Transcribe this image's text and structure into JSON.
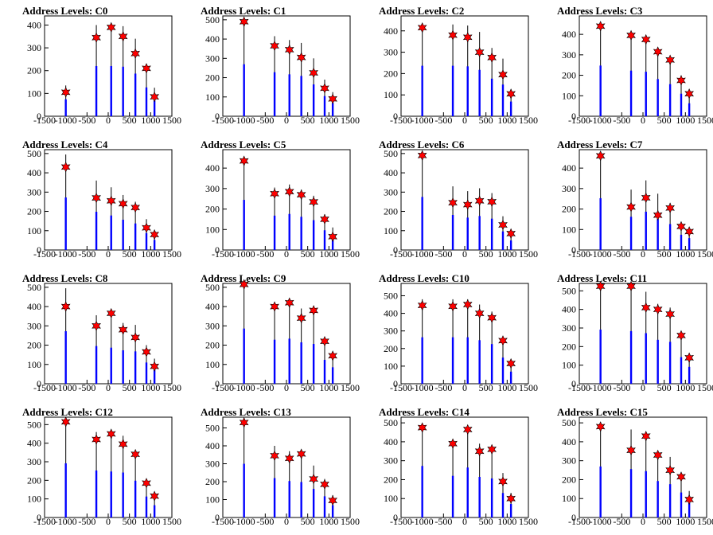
{
  "chart_data": [
    {
      "type": "bar",
      "title": "Address Levels: C0",
      "xlim": [
        -1500,
        1500
      ],
      "ylim": [
        0,
        440
      ],
      "yticks": [
        0,
        100,
        200,
        300,
        400
      ],
      "xticks": [
        -1500,
        -1000,
        -500,
        0,
        500,
        1000,
        1500
      ],
      "x": [
        -1000,
        -280,
        70,
        350,
        640,
        900,
        1090
      ],
      "values": [
        135,
        400,
        400,
        395,
        340,
        230,
        125
      ],
      "marker_values": [
        105,
        345,
        390,
        350,
        275,
        210,
        85
      ]
    },
    {
      "type": "bar",
      "title": "Address Levels: C1",
      "xlim": [
        -1500,
        1500
      ],
      "ylim": [
        0,
        520
      ],
      "yticks": [
        0,
        100,
        200,
        300,
        400,
        500
      ],
      "xticks": [
        -1500,
        -1000,
        -500,
        0,
        500,
        1000,
        1500
      ],
      "x": [
        -1000,
        -280,
        70,
        350,
        640,
        900,
        1090
      ],
      "values": [
        490,
        415,
        395,
        380,
        300,
        190,
        125
      ],
      "marker_values": [
        490,
        365,
        345,
        305,
        225,
        145,
        90
      ]
    },
    {
      "type": "bar",
      "title": "Address Levels: C2",
      "xlim": [
        -1500,
        1500
      ],
      "ylim": [
        0,
        470
      ],
      "yticks": [
        0,
        100,
        200,
        300,
        400
      ],
      "xticks": [
        -1500,
        -1000,
        -500,
        0,
        500,
        1000,
        1500
      ],
      "x": [
        -1000,
        -280,
        70,
        350,
        640,
        900,
        1090
      ],
      "values": [
        430,
        430,
        425,
        395,
        320,
        270,
        125
      ],
      "marker_values": [
        415,
        380,
        370,
        300,
        275,
        195,
        105
      ]
    },
    {
      "type": "bar",
      "title": "Address Levels: C3",
      "xlim": [
        -1500,
        1500
      ],
      "ylim": [
        0,
        490
      ],
      "yticks": [
        0,
        100,
        200,
        300,
        400
      ],
      "xticks": [
        -1500,
        -1000,
        -500,
        0,
        500,
        1000,
        1500
      ],
      "x": [
        -1000,
        -280,
        70,
        350,
        640,
        900,
        1090
      ],
      "values": [
        450,
        405,
        395,
        330,
        285,
        200,
        115
      ],
      "marker_values": [
        440,
        395,
        375,
        315,
        275,
        175,
        110
      ]
    },
    {
      "type": "bar",
      "title": "Address Levels: C4",
      "xlim": [
        -1500,
        1500
      ],
      "ylim": [
        0,
        520
      ],
      "yticks": [
        0,
        100,
        200,
        300,
        400,
        500
      ],
      "xticks": [
        -1500,
        -1000,
        -500,
        0,
        500,
        1000,
        1500
      ],
      "x": [
        -1000,
        -280,
        70,
        350,
        640,
        900,
        1090
      ],
      "values": [
        495,
        360,
        325,
        285,
        250,
        160,
        95
      ],
      "marker_values": [
        430,
        270,
        255,
        240,
        220,
        115,
        80
      ]
    },
    {
      "type": "bar",
      "title": "Address Levels: C5",
      "xlim": [
        -1500,
        1500
      ],
      "ylim": [
        0,
        490
      ],
      "yticks": [
        0,
        100,
        200,
        300,
        400
      ],
      "xticks": [
        -1500,
        -1000,
        -500,
        0,
        500,
        1000,
        1500
      ],
      "x": [
        -1000,
        -280,
        70,
        350,
        640,
        900,
        1090
      ],
      "values": [
        445,
        305,
        320,
        295,
        265,
        175,
        110
      ],
      "marker_values": [
        435,
        275,
        285,
        270,
        235,
        150,
        65
      ]
    },
    {
      "type": "bar",
      "title": "Address Levels: C6",
      "xlim": [
        -1500,
        1500
      ],
      "ylim": [
        0,
        520
      ],
      "yticks": [
        0,
        100,
        200,
        300,
        400,
        500
      ],
      "xticks": [
        -1500,
        -1000,
        -500,
        0,
        500,
        1000,
        1500
      ],
      "x": [
        -1000,
        -280,
        70,
        350,
        640,
        900,
        1090
      ],
      "values": [
        500,
        330,
        305,
        320,
        295,
        175,
        90
      ],
      "marker_values": [
        490,
        245,
        235,
        255,
        250,
        130,
        85
      ]
    },
    {
      "type": "bar",
      "title": "Address Levels: C7",
      "xlim": [
        -1500,
        1500
      ],
      "ylim": [
        0,
        490
      ],
      "yticks": [
        0,
        100,
        200,
        300,
        400
      ],
      "xticks": [
        -1500,
        -1000,
        -500,
        0,
        500,
        1000,
        1500
      ],
      "x": [
        -1000,
        -280,
        70,
        350,
        640,
        900,
        1090
      ],
      "values": [
        460,
        295,
        340,
        275,
        230,
        135,
        105
      ],
      "marker_values": [
        460,
        210,
        255,
        170,
        205,
        115,
        90
      ]
    },
    {
      "type": "bar",
      "title": "Address Levels: C8",
      "xlim": [
        -1500,
        1500
      ],
      "ylim": [
        0,
        520
      ],
      "yticks": [
        0,
        100,
        200,
        300,
        400,
        500
      ],
      "xticks": [
        -1500,
        -1000,
        -500,
        0,
        500,
        1000,
        1500
      ],
      "x": [
        -1000,
        -280,
        70,
        350,
        640,
        900,
        1090
      ],
      "values": [
        495,
        355,
        340,
        315,
        305,
        200,
        130
      ],
      "marker_values": [
        400,
        300,
        365,
        280,
        240,
        165,
        90
      ]
    },
    {
      "type": "bar",
      "title": "Address Levels: C9",
      "xlim": [
        -1500,
        1500
      ],
      "ylim": [
        0,
        520
      ],
      "yticks": [
        0,
        100,
        200,
        300,
        400,
        500
      ],
      "xticks": [
        -1500,
        -1000,
        -500,
        0,
        500,
        1000,
        1500
      ],
      "x": [
        -1000,
        -280,
        70,
        350,
        640,
        900,
        1090
      ],
      "values": [
        520,
        415,
        425,
        390,
        375,
        225,
        155
      ],
      "marker_values": [
        515,
        400,
        420,
        340,
        380,
        220,
        145
      ]
    },
    {
      "type": "bar",
      "title": "Address Levels: C10",
      "xlim": [
        -1500,
        1500
      ],
      "ylim": [
        0,
        570
      ],
      "yticks": [
        0,
        100,
        200,
        300,
        400,
        500
      ],
      "xticks": [
        -1500,
        -1000,
        -500,
        0,
        500,
        1000,
        1500
      ],
      "x": [
        -1000,
        -280,
        70,
        350,
        640,
        900,
        1090
      ],
      "values": [
        480,
        480,
        480,
        450,
        410,
        270,
        125
      ],
      "marker_values": [
        445,
        440,
        450,
        400,
        375,
        245,
        115
      ]
    },
    {
      "type": "bar",
      "title": "Address Levels: C11",
      "xlim": [
        -1500,
        1500
      ],
      "ylim": [
        0,
        540
      ],
      "yticks": [
        0,
        100,
        200,
        300,
        400,
        500
      ],
      "xticks": [
        -1500,
        -1000,
        -500,
        0,
        500,
        1000,
        1500
      ],
      "x": [
        -1000,
        -280,
        70,
        350,
        640,
        900,
        1090
      ],
      "values": [
        530,
        515,
        495,
        430,
        410,
        260,
        165
      ],
      "marker_values": [
        525,
        525,
        410,
        400,
        375,
        260,
        140
      ]
    },
    {
      "type": "bar",
      "title": "Address Levels: C12",
      "xlim": [
        -1500,
        1500
      ],
      "ylim": [
        0,
        540
      ],
      "yticks": [
        0,
        100,
        200,
        300,
        400,
        500
      ],
      "xticks": [
        -1500,
        -1000,
        -500,
        0,
        500,
        1000,
        1500
      ],
      "x": [
        -1000,
        -280,
        70,
        350,
        640,
        900,
        1090
      ],
      "values": [
        530,
        460,
        450,
        440,
        360,
        205,
        120
      ],
      "marker_values": [
        515,
        420,
        450,
        395,
        340,
        185,
        115
      ]
    },
    {
      "type": "bar",
      "title": "Address Levels: C13",
      "xlim": [
        -1500,
        1500
      ],
      "ylim": [
        0,
        560
      ],
      "yticks": [
        0,
        100,
        200,
        300,
        400,
        500
      ],
      "xticks": [
        -1500,
        -1000,
        -500,
        0,
        500,
        1000,
        1500
      ],
      "x": [
        -1000,
        -280,
        70,
        350,
        640,
        900,
        1090
      ],
      "values": [
        545,
        400,
        370,
        360,
        290,
        215,
        125
      ],
      "marker_values": [
        530,
        345,
        330,
        355,
        215,
        185,
        95
      ]
    },
    {
      "type": "bar",
      "title": "Address Levels: C14",
      "xlim": [
        -1500,
        1500
      ],
      "ylim": [
        0,
        530
      ],
      "yticks": [
        0,
        100,
        200,
        300,
        400,
        500
      ],
      "xticks": [
        -1500,
        -1000,
        -500,
        0,
        500,
        1000,
        1500
      ],
      "x": [
        -1000,
        -280,
        70,
        350,
        640,
        900,
        1090
      ],
      "values": [
        495,
        400,
        480,
        390,
        375,
        235,
        130
      ],
      "marker_values": [
        475,
        390,
        465,
        350,
        360,
        190,
        100
      ]
    },
    {
      "type": "bar",
      "title": "Address Levels: C15",
      "xlim": [
        -1500,
        1500
      ],
      "ylim": [
        0,
        530
      ],
      "yticks": [
        0,
        100,
        200,
        300,
        400,
        500
      ],
      "xticks": [
        -1500,
        -1000,
        -500,
        0,
        500,
        1000,
        1500
      ],
      "x": [
        -1000,
        -280,
        70,
        350,
        640,
        900,
        1090
      ],
      "values": [
        490,
        465,
        445,
        350,
        320,
        240,
        140
      ],
      "marker_values": [
        480,
        355,
        430,
        330,
        250,
        215,
        95
      ]
    }
  ],
  "colors": {
    "bar": "#0000ff",
    "spike": "#000000",
    "marker": "#ff0000",
    "marker_edge": "#000000"
  }
}
